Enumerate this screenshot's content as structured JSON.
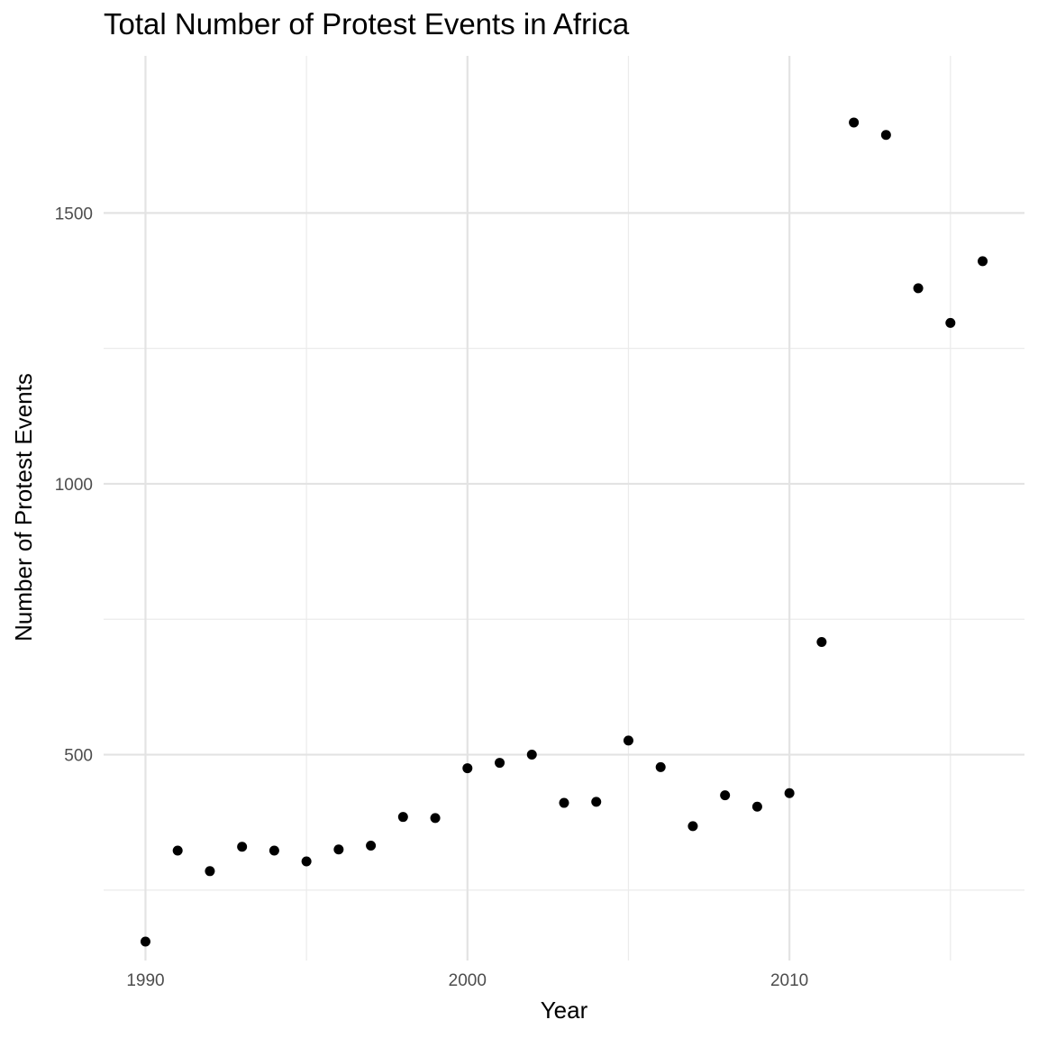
{
  "chart_data": {
    "type": "scatter",
    "title": "Total Number of Protest Events in Africa",
    "xlabel": "Year",
    "ylabel": "Number of Protest Events",
    "xlim": [
      1988.7,
      2017.3
    ],
    "ylim": [
      120,
      1790
    ],
    "x_ticks": [
      1990,
      2000,
      2010
    ],
    "x_minor": [
      1995,
      2005,
      2015
    ],
    "y_ticks": [
      500,
      1000,
      1500
    ],
    "y_minor": [
      250,
      750,
      1250
    ],
    "grid": true,
    "legend": "none",
    "point_color": "#000000",
    "points": [
      {
        "x": 1990,
        "y": 155
      },
      {
        "x": 1991,
        "y": 323
      },
      {
        "x": 1992,
        "y": 285
      },
      {
        "x": 1993,
        "y": 330
      },
      {
        "x": 1994,
        "y": 323
      },
      {
        "x": 1995,
        "y": 303
      },
      {
        "x": 1996,
        "y": 325
      },
      {
        "x": 1997,
        "y": 332
      },
      {
        "x": 1998,
        "y": 385
      },
      {
        "x": 1999,
        "y": 383
      },
      {
        "x": 2000,
        "y": 475
      },
      {
        "x": 2001,
        "y": 485
      },
      {
        "x": 2002,
        "y": 500
      },
      {
        "x": 2003,
        "y": 411
      },
      {
        "x": 2004,
        "y": 413
      },
      {
        "x": 2005,
        "y": 526
      },
      {
        "x": 2006,
        "y": 477
      },
      {
        "x": 2007,
        "y": 368
      },
      {
        "x": 2008,
        "y": 425
      },
      {
        "x": 2009,
        "y": 404
      },
      {
        "x": 2010,
        "y": 429
      },
      {
        "x": 2011,
        "y": 708
      },
      {
        "x": 2012,
        "y": 1667
      },
      {
        "x": 2013,
        "y": 1644
      },
      {
        "x": 2014,
        "y": 1361
      },
      {
        "x": 2015,
        "y": 1297
      },
      {
        "x": 2016,
        "y": 1411
      }
    ]
  }
}
